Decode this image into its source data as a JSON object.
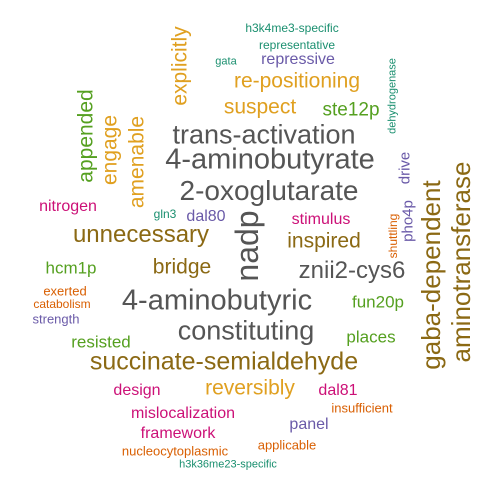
{
  "words": [
    {
      "text": "4-aminobutyrate",
      "color": "#555555"
    },
    {
      "text": "4-aminobutyric",
      "color": "#555555"
    },
    {
      "text": "2-oxoglutarate",
      "color": "#555555"
    },
    {
      "text": "trans-activation",
      "color": "#555555"
    },
    {
      "text": "constituting",
      "color": "#555555"
    },
    {
      "text": "nadp",
      "color": "#555555"
    },
    {
      "text": "znii2-cys6",
      "color": "#555555"
    },
    {
      "text": "aminotransferase",
      "color": "#8b6914"
    },
    {
      "text": "gaba-dependent",
      "color": "#8b6914"
    },
    {
      "text": "succinate-semialdehyde",
      "color": "#8b6914"
    },
    {
      "text": "unnecessary",
      "color": "#8b6914"
    },
    {
      "text": "inspired",
      "color": "#8b6914"
    },
    {
      "text": "bridge",
      "color": "#8b6914"
    },
    {
      "text": "engage",
      "color": "#e0a020"
    },
    {
      "text": "amenable",
      "color": "#e0a020"
    },
    {
      "text": "explicitly",
      "color": "#e0a020"
    },
    {
      "text": "re-positioning",
      "color": "#e0a020"
    },
    {
      "text": "suspect",
      "color": "#e0a020"
    },
    {
      "text": "reversibly",
      "color": "#e0a020"
    },
    {
      "text": "appended",
      "color": "#55a020"
    },
    {
      "text": "ste12p",
      "color": "#55a020"
    },
    {
      "text": "hcm1p",
      "color": "#55a020"
    },
    {
      "text": "fun20p",
      "color": "#55a020"
    },
    {
      "text": "resisted",
      "color": "#55a020"
    },
    {
      "text": "places",
      "color": "#55a020"
    },
    {
      "text": "nitrogen",
      "color": "#cc1077"
    },
    {
      "text": "stimulus",
      "color": "#cc1077"
    },
    {
      "text": "design",
      "color": "#cc1077"
    },
    {
      "text": "dal81",
      "color": "#cc1077"
    },
    {
      "text": "mislocalization",
      "color": "#cc1077"
    },
    {
      "text": "framework",
      "color": "#cc1077"
    },
    {
      "text": "gln3",
      "color": "#1a8f6f"
    },
    {
      "text": "h3k4me3-specific",
      "color": "#1a8f6f"
    },
    {
      "text": "representative",
      "color": "#1a8f6f"
    },
    {
      "text": "gata",
      "color": "#1a8f6f"
    },
    {
      "text": "dehydrogenase",
      "color": "#1a8f6f"
    },
    {
      "text": "h3k36me23-specific",
      "color": "#1a8f6f"
    },
    {
      "text": "repressive",
      "color": "#6a5aa8"
    },
    {
      "text": "dal80",
      "color": "#6a5aa8"
    },
    {
      "text": "pho4p",
      "color": "#6a5aa8"
    },
    {
      "text": "drive",
      "color": "#6a5aa8"
    },
    {
      "text": "strength",
      "color": "#6a5aa8"
    },
    {
      "text": "panel",
      "color": "#6a5aa8"
    },
    {
      "text": "shuttling",
      "color": "#d95f02"
    },
    {
      "text": "exerted",
      "color": "#d95f02"
    },
    {
      "text": "catabolism",
      "color": "#d95f02"
    },
    {
      "text": "insufficient",
      "color": "#d95f02"
    },
    {
      "text": "applicable",
      "color": "#d95f02"
    },
    {
      "text": "nucleocytoplasmic",
      "color": "#d95f02"
    }
  ]
}
